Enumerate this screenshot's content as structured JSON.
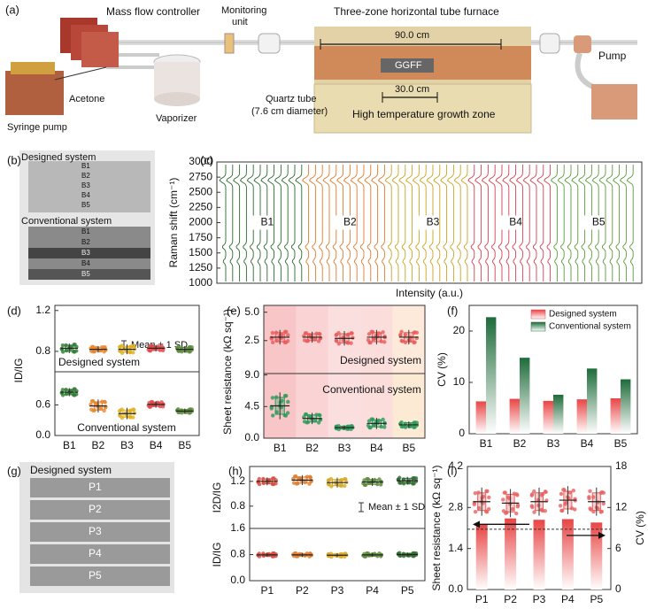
{
  "panel_labels": [
    "(a)",
    "(b)",
    "(c)",
    "(d)",
    "(e)",
    "(f)",
    "(g)",
    "(h)",
    "(i)"
  ],
  "diagram": {
    "mass_flow_controller": "Mass flow controller",
    "monitoring_unit": [
      "Monitoring",
      "unit"
    ],
    "furnace": "Three-zone horizontal tube furnace",
    "length_total": "90.0 cm",
    "sample": "GGFF",
    "length_zone": "30.0 cm",
    "acetone": "Acetone",
    "syringe_pump": "Syringe pump",
    "vaporizer": "Vaporizer",
    "quartz_tube": "Quartz tube",
    "tube_diameter": "(7.6 cm diameter)",
    "growth_zone": "High temperature growth zone",
    "pump": "Pump"
  },
  "photo_b": {
    "heading_1": "Designed system",
    "strips_1": [
      "B1",
      "B2",
      "B3",
      "B4",
      "B5"
    ],
    "heading_2": "Conventional system",
    "strips_2": [
      "B1",
      "B2",
      "B3",
      "B4",
      "B5"
    ]
  },
  "photo_g": {
    "heading": "Designed system",
    "strips": [
      "P1",
      "P2",
      "P3",
      "P4",
      "P5"
    ]
  },
  "chart_data": [
    {
      "type": "spectra",
      "ylabel": "Raman shift (cm⁻¹)",
      "xlabel": "Intensity (a.u.)",
      "categories": [
        "B1",
        "B2",
        "B3",
        "B4",
        "B5"
      ],
      "colors": [
        "#2e6b2e",
        "#e07a2a",
        "#c9a320",
        "#d64050",
        "#5d9a3a"
      ],
      "ylim": [
        1000,
        3000
      ],
      "yticks": [
        1000,
        1250,
        1500,
        1750,
        2000,
        2250,
        2500,
        2750,
        3000
      ]
    },
    {
      "type": "errorbar",
      "ylabel": "ID/IG",
      "categories": [
        "B1",
        "B2",
        "B3",
        "B4",
        "B5"
      ],
      "colors": [
        "#2e7d32",
        "#e8862a",
        "#e0b020",
        "#e04848",
        "#5a8a3a"
      ],
      "subplots": [
        {
          "ylim": [
            0.6,
            1.25
          ],
          "yticks": [
            0.8,
            1.2
          ],
          "annotation": "Designed system",
          "note": "Mean ± 1 SD",
          "means": [
            0.83,
            0.82,
            0.82,
            0.83,
            0.82
          ],
          "sd": [
            0.03,
            0.02,
            0.03,
            0.02,
            0.02
          ]
        },
        {
          "ylim": [
            0,
            1.25
          ],
          "yticks": [
            {
              "value": 0,
              "label": "0.0"
            },
            0.6
          ],
          "annotation": "Conventional system",
          "means": [
            0.85,
            0.58,
            0.43,
            0.61,
            0.48
          ],
          "sd": [
            0.05,
            0.08,
            0.07,
            0.04,
            0.03
          ]
        }
      ]
    },
    {
      "type": "errorbar",
      "ylabel": "Sheet resistance (kΩ sq⁻¹)",
      "categories": [
        "B1",
        "B2",
        "B3",
        "B4",
        "B5"
      ],
      "subplots": [
        {
          "ylim": [
            -0.4,
            5.6
          ],
          "yticks": [
            2.5,
            {
              "value": 5,
              "label": "5.0"
            }
          ],
          "annotation": "Designed system",
          "color": "#e85a5a",
          "bands": [
            "#f08080",
            "#f4a0a0",
            "#f7b8b8",
            "#f6b4b0",
            "#fbd0b0"
          ],
          "means": [
            2.8,
            2.8,
            2.7,
            2.8,
            2.8
          ],
          "sd": [
            0.4,
            0.3,
            0.4,
            0.4,
            0.4
          ]
        },
        {
          "ylim": [
            0,
            9.2
          ],
          "yticks": [
            {
              "value": 0,
              "label": "0.0"
            },
            4.5,
            {
              "value": 9,
              "label": "9.0"
            }
          ],
          "annotation": "Conventional system",
          "color": "#2a9a5a",
          "bands": [
            "#f08080",
            "#f4a0a0",
            "#f7b8b8",
            "#f6b4b0",
            "#fbd0a0"
          ],
          "means": [
            4.6,
            2.8,
            1.5,
            2.1,
            1.9
          ],
          "sd": [
            1.2,
            0.5,
            0.2,
            0.5,
            0.3
          ]
        }
      ]
    },
    {
      "type": "bar",
      "ylabel": "CV (%)",
      "categories": [
        "B1",
        "B2",
        "B3",
        "B4",
        "B5"
      ],
      "ylim": [
        0,
        25
      ],
      "yticks": [
        0,
        10,
        20
      ],
      "legend": "upper right",
      "series": [
        {
          "name": "Designed system",
          "color": "#e84545",
          "values": [
            6.3,
            6.8,
            6.4,
            6.7,
            6.9
          ]
        },
        {
          "name": "Conventional system",
          "color": "#1e6b3a",
          "values": [
            22.7,
            14.8,
            7.6,
            12.7,
            10.6
          ]
        }
      ]
    },
    {
      "type": "errorbar",
      "categories": [
        "P1",
        "P2",
        "P3",
        "P4",
        "P5"
      ],
      "colors": [
        "#d9483a",
        "#e07a2a",
        "#d8a820",
        "#5a8a3a",
        "#2e6b2e"
      ],
      "subplots": [
        {
          "ylabel": "I2D/IG",
          "ylim": [
            0.44,
            1.44
          ],
          "yticks": [
            0.8,
            1.2
          ],
          "note": "Mean ± 1 SD",
          "means": [
            1.2,
            1.22,
            1.18,
            1.19,
            1.21
          ],
          "sd": [
            0.04,
            0.05,
            0.05,
            0.04,
            0.04
          ]
        },
        {
          "ylabel": "ID/IG",
          "ylim": [
            0,
            1.6
          ],
          "yticks": [
            {
              "value": 0,
              "label": "0.0"
            },
            0.8,
            1.6
          ],
          "means": [
            0.79,
            0.79,
            0.78,
            0.79,
            0.8
          ],
          "sd": [
            0.04,
            0.04,
            0.04,
            0.04,
            0.04
          ]
        }
      ]
    },
    {
      "type": "dual",
      "ylabel": "Sheet resistance (kΩ sq⁻¹)",
      "y2label": "CV (%)",
      "categories": [
        "P1",
        "P2",
        "P3",
        "P4",
        "P5"
      ],
      "ylim": [
        0,
        4.2
      ],
      "yticks": [
        {
          "value": 0,
          "label": "0.0"
        },
        1.4,
        2.8,
        4.2
      ],
      "y2lim": [
        0,
        18
      ],
      "y2ticks": [
        0,
        6,
        12,
        18
      ],
      "series": [
        {
          "type": "errorbar",
          "color": "#e86060",
          "means": [
            3.0,
            2.95,
            3.0,
            3.05,
            3.0
          ],
          "sd": [
            0.3,
            0.3,
            0.3,
            0.3,
            0.3
          ]
        },
        {
          "type": "bar",
          "axis": "y2",
          "color": "#e84545",
          "values": [
            9.5,
            10.4,
            10.2,
            10.3,
            9.8
          ]
        }
      ]
    }
  ]
}
